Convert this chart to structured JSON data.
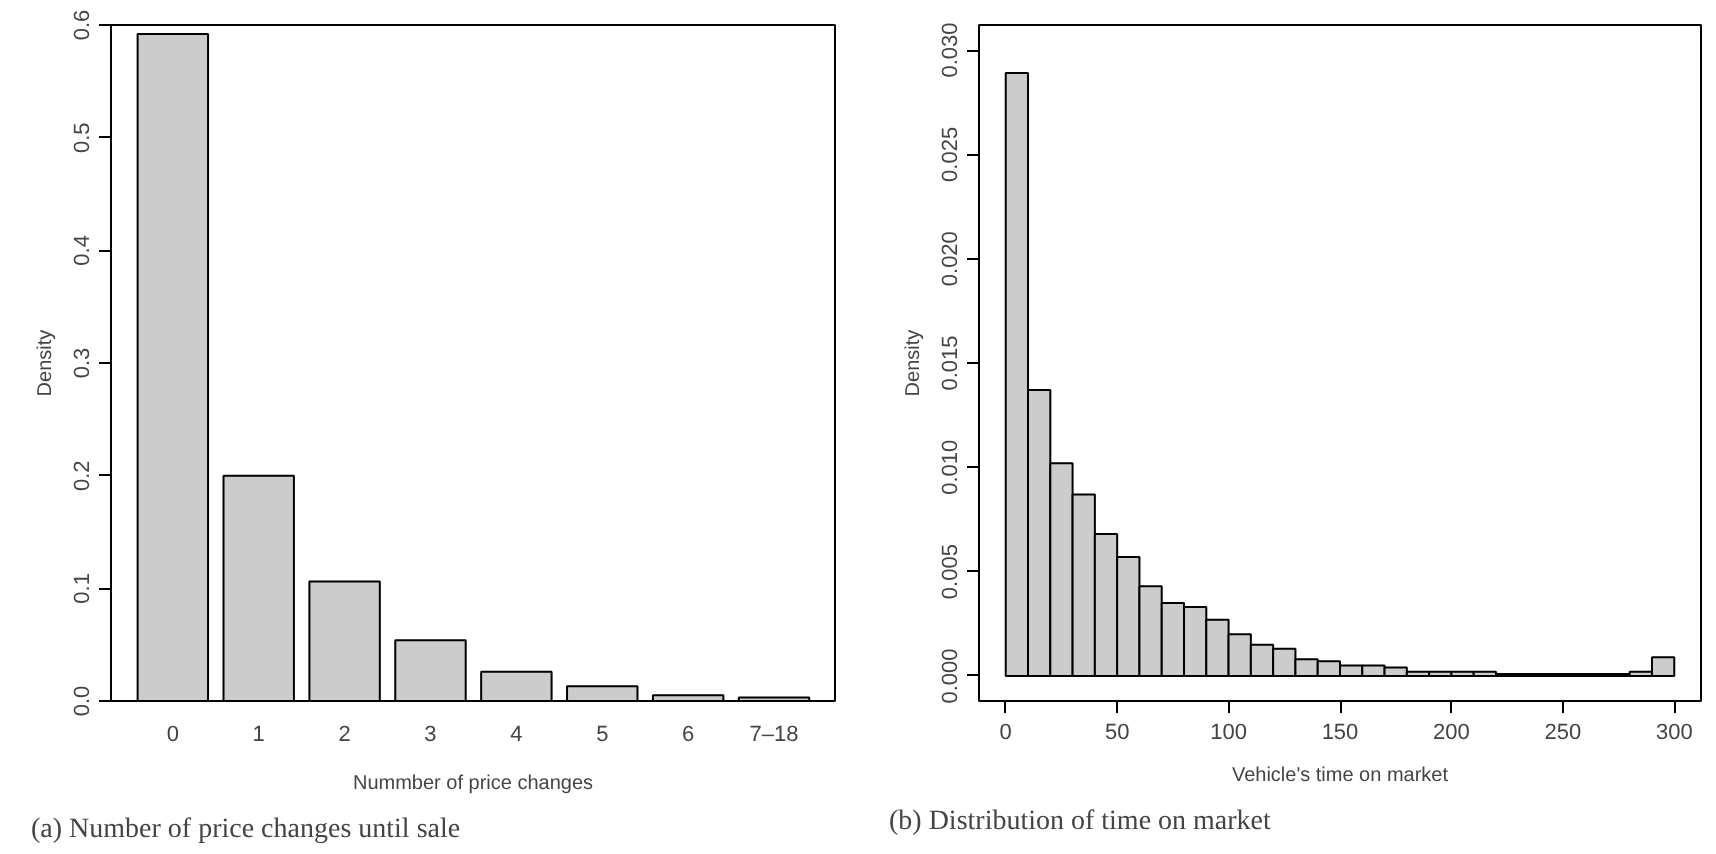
{
  "chart_data": [
    {
      "type": "bar",
      "xlabel": "Nummber of price changes",
      "ylabel": "Density",
      "categories": [
        "0",
        "1",
        "2",
        "3",
        "4",
        "5",
        "6",
        "7–18"
      ],
      "values": [
        0.592,
        0.2,
        0.106,
        0.054,
        0.026,
        0.013,
        0.005,
        0.003
      ],
      "color": "#cccccc",
      "ylim": [
        0,
        0.6
      ],
      "yticks": [
        {
          "value": 0,
          "label": "0.0"
        },
        0.1,
        0.2,
        0.3,
        0.4,
        0.5,
        0.6
      ],
      "grid": false,
      "annotations": [
        "(a)  Number of price changes until sale"
      ]
    },
    {
      "type": "histogram",
      "xlabel": "Vehicle's time on market",
      "ylabel": "Density",
      "bins": [
        0,
        10,
        20,
        30,
        40,
        50,
        60,
        70,
        80,
        90,
        100,
        110,
        120,
        130,
        140,
        150,
        160,
        170,
        180,
        190,
        200,
        210,
        220,
        230,
        240,
        250,
        260,
        270,
        280,
        290,
        300
      ],
      "values": [
        0.0289,
        0.0137,
        0.0102,
        0.0087,
        0.0068,
        0.0057,
        0.0043,
        0.0035,
        0.0033,
        0.0027,
        0.002,
        0.0015,
        0.0013,
        0.0008,
        0.0007,
        0.0005,
        0.0005,
        0.0004,
        0.0002,
        0.0002,
        0.0002,
        0.0002,
        0.0001,
        0.0001,
        0.0001,
        0.0001,
        0.0001,
        0.0001,
        0.0002,
        0.0009
      ],
      "color": "#cccccc",
      "xlim": [
        -12,
        312
      ],
      "xticks": [
        0,
        50,
        100,
        150,
        200,
        250,
        300
      ],
      "ylim": [
        -0.0012,
        0.0312
      ],
      "yticks": [
        {
          "value": 0,
          "label": "0.000"
        },
        0.005,
        {
          "value": 0.01,
          "label": "0.010"
        },
        0.015,
        {
          "value": 0.02,
          "label": "0.020"
        },
        0.025,
        {
          "value": 0.03,
          "label": "0.030"
        }
      ],
      "grid": false,
      "annotations": [
        "(b)  Distribution of time on market"
      ]
    }
  ]
}
